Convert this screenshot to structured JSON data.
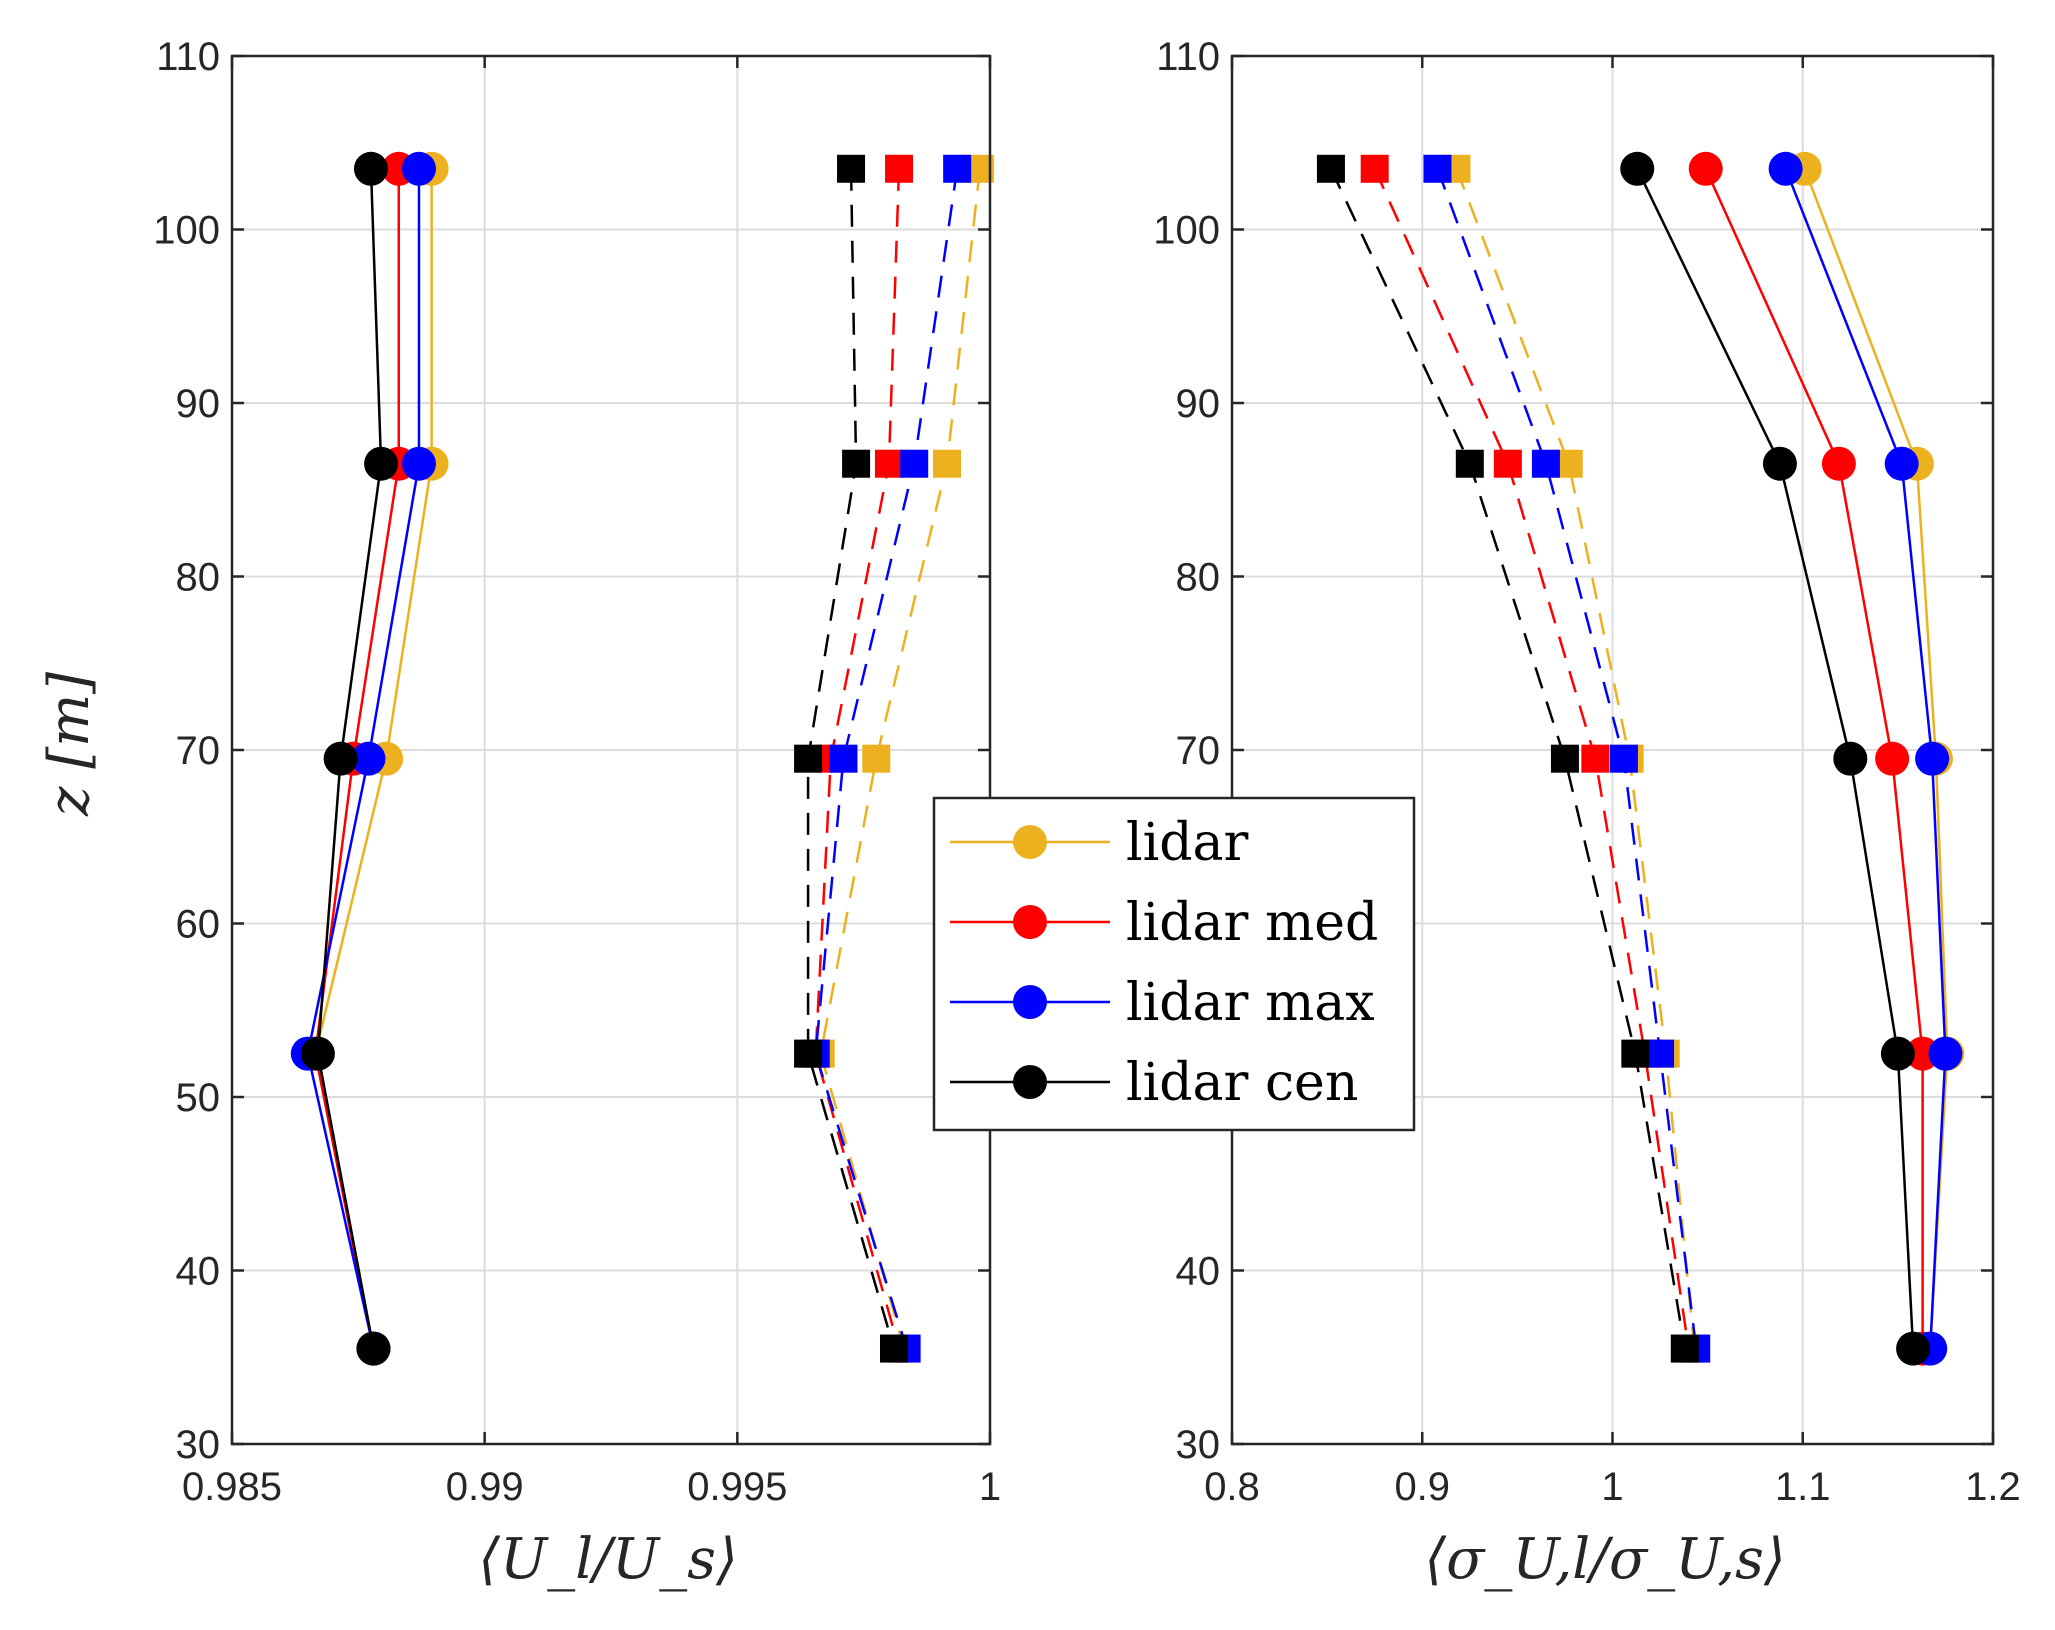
{
  "colors": {
    "lidar": "#EDB120",
    "lidar_med": "#FF0000",
    "lidar_max": "#0000FF",
    "lidar_cen": "#000000",
    "grid": "#DCDCDC",
    "axis": "#262626"
  },
  "legend": {
    "entries": [
      "lidar",
      "lidar med",
      "lidar max",
      "lidar cen"
    ],
    "placement": "center"
  },
  "chart_data": [
    {
      "type": "line",
      "title": "",
      "xlabel": "⟨U_l/U_s⟩",
      "ylabel": "z [m]",
      "xlim": [
        0.985,
        1.0
      ],
      "ylim": [
        30,
        110
      ],
      "xticks": [
        0.985,
        0.99,
        0.995,
        1.0
      ],
      "xtick_labels": [
        "0.985",
        "0.99",
        "0.995",
        "1"
      ],
      "yticks": [
        30,
        40,
        50,
        60,
        70,
        80,
        90,
        100,
        110
      ],
      "ytick_labels": [
        "30",
        "40",
        "50",
        "60",
        "70",
        "80",
        "90",
        "100",
        "110"
      ],
      "grid": true,
      "heights": [
        103.5,
        86.5,
        69.5,
        52.5,
        35.5
      ],
      "series": [
        {
          "name": "lidar",
          "style": "solid",
          "marker": "circle",
          "x": [
            0.98895,
            0.98895,
            0.98805,
            0.98665,
            0.9878
          ]
        },
        {
          "name": "lidar med",
          "style": "solid",
          "marker": "circle",
          "x": [
            0.9883,
            0.9883,
            0.9874,
            0.98665,
            0.9878
          ]
        },
        {
          "name": "lidar max",
          "style": "solid",
          "marker": "circle",
          "x": [
            0.9887,
            0.9887,
            0.9877,
            0.9865,
            0.9878
          ]
        },
        {
          "name": "lidar cen",
          "style": "solid",
          "marker": "circle",
          "x": [
            0.98775,
            0.98795,
            0.98715,
            0.9867,
            0.9878
          ]
        },
        {
          "name": "lidar",
          "style": "dashed",
          "marker": "square",
          "x": [
            0.9998,
            0.99915,
            0.99775,
            0.99665,
            0.9983
          ]
        },
        {
          "name": "lidar med",
          "style": "dashed",
          "marker": "square",
          "x": [
            0.9982,
            0.998,
            0.99685,
            0.99655,
            0.9982
          ]
        },
        {
          "name": "lidar max",
          "style": "dashed",
          "marker": "square",
          "x": [
            0.99935,
            0.9985,
            0.9971,
            0.99655,
            0.99835
          ]
        },
        {
          "name": "lidar cen",
          "style": "dashed",
          "marker": "square",
          "x": [
            0.99725,
            0.99735,
            0.9964,
            0.9964,
            0.9981
          ]
        }
      ]
    },
    {
      "type": "line",
      "title": "",
      "xlabel": "⟨σ_U,l/σ_U,s⟩",
      "ylabel": "",
      "xlim": [
        0.8,
        1.2
      ],
      "ylim": [
        30,
        110
      ],
      "xticks": [
        0.8,
        0.9,
        1.0,
        1.1,
        1.2
      ],
      "xtick_labels": [
        "0.8",
        "0.9",
        "1",
        "1.1",
        "1.2"
      ],
      "yticks": [
        30,
        40,
        50,
        60,
        70,
        80,
        90,
        100,
        110
      ],
      "ytick_labels": [
        "30",
        "40",
        "50",
        "60",
        "70",
        "80",
        "90",
        "100",
        "110"
      ],
      "grid": true,
      "heights": [
        103.5,
        86.5,
        69.5,
        52.5,
        35.5
      ],
      "series": [
        {
          "name": "lidar",
          "style": "solid",
          "marker": "circle",
          "x": [
            1.101,
            1.16,
            1.17,
            1.176,
            1.167
          ]
        },
        {
          "name": "lidar med",
          "style": "solid",
          "marker": "circle",
          "x": [
            1.049,
            1.119,
            1.147,
            1.163,
            1.163
          ]
        },
        {
          "name": "lidar max",
          "style": "solid",
          "marker": "circle",
          "x": [
            1.091,
            1.152,
            1.168,
            1.175,
            1.167
          ]
        },
        {
          "name": "lidar cen",
          "style": "solid",
          "marker": "circle",
          "x": [
            1.013,
            1.088,
            1.125,
            1.15,
            1.158
          ]
        },
        {
          "name": "lidar",
          "style": "dashed",
          "marker": "square",
          "x": [
            0.918,
            0.977,
            1.009,
            1.028,
            1.043
          ]
        },
        {
          "name": "lidar med",
          "style": "dashed",
          "marker": "square",
          "x": [
            0.875,
            0.945,
            0.991,
            1.017,
            1.04
          ]
        },
        {
          "name": "lidar max",
          "style": "dashed",
          "marker": "square",
          "x": [
            0.908,
            0.965,
            1.006,
            1.025,
            1.044
          ]
        },
        {
          "name": "lidar cen",
          "style": "dashed",
          "marker": "square",
          "x": [
            0.852,
            0.925,
            0.975,
            1.012,
            1.038
          ]
        }
      ]
    }
  ]
}
